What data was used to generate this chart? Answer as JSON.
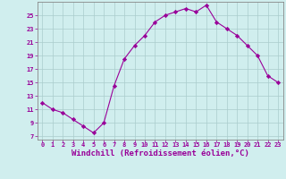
{
  "x": [
    0,
    1,
    2,
    3,
    4,
    5,
    6,
    7,
    8,
    9,
    10,
    11,
    12,
    13,
    14,
    15,
    16,
    17,
    18,
    19,
    20,
    21,
    22,
    23
  ],
  "y": [
    12,
    11,
    10.5,
    9.5,
    8.5,
    7.5,
    9,
    14.5,
    18.5,
    20.5,
    22,
    24,
    25,
    25.5,
    26,
    25.5,
    26.5,
    24,
    23,
    22,
    20.5,
    19,
    16,
    15
  ],
  "line_color": "#990099",
  "marker": "D",
  "marker_size": 2.2,
  "bg_color": "#d0eeee",
  "grid_color": "#aacccc",
  "xlabel": "Windchill (Refroidissement éolien,°C)",
  "xlabel_color": "#990099",
  "ylabel_ticks": [
    7,
    9,
    11,
    13,
    15,
    17,
    19,
    21,
    23,
    25
  ],
  "xlim": [
    -0.5,
    23.5
  ],
  "ylim": [
    6.5,
    27
  ],
  "xtick_labels": [
    "0",
    "1",
    "2",
    "3",
    "4",
    "5",
    "6",
    "7",
    "8",
    "9",
    "10",
    "11",
    "12",
    "13",
    "14",
    "15",
    "16",
    "17",
    "18",
    "19",
    "20",
    "21",
    "22",
    "23"
  ],
  "tick_color": "#990099",
  "tick_fontsize": 5.0,
  "xlabel_fontsize": 6.5,
  "spine_color": "#888888"
}
